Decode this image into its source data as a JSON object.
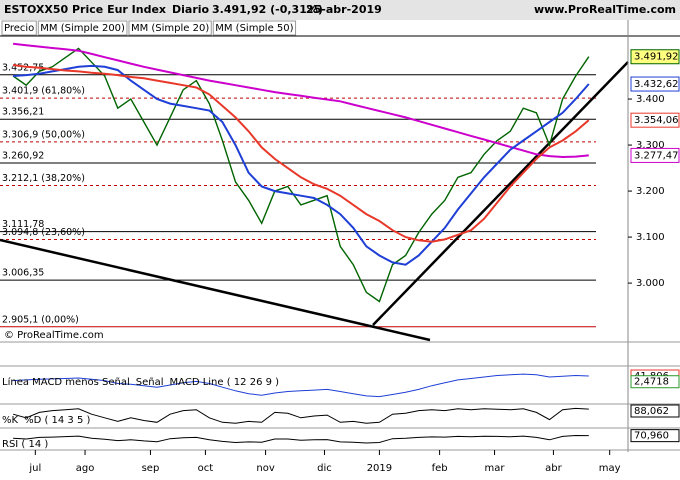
{
  "chart_data": {
    "type": "line",
    "title": "ESTOXX50 Price Eur Index",
    "period": "Diario",
    "last": "3.491,92 (-0,31%)",
    "date": "25-abr-2019",
    "source": "www.ProRealTime.com",
    "copyright": "© ProRealTime.com",
    "xlim": [
      -1,
      47
    ],
    "xticks": [
      {
        "value": 1.7,
        "label": "jul"
      },
      {
        "value": 5.5,
        "label": "ago"
      },
      {
        "value": 10.5,
        "label": "sep"
      },
      {
        "value": 14.7,
        "label": "oct"
      },
      {
        "value": 19.3,
        "label": "nov"
      },
      {
        "value": 23.8,
        "label": "dic"
      },
      {
        "value": 28,
        "label": "2019"
      },
      {
        "value": 32.6,
        "label": "feb"
      },
      {
        "value": 36.8,
        "label": "mar"
      },
      {
        "value": 41.3,
        "label": "abr"
      },
      {
        "value": 45.6,
        "label": "may"
      }
    ],
    "ylim": [
      2872,
      3537
    ],
    "yticks": [
      {
        "value": 3000,
        "label": "3.000"
      },
      {
        "value": 3100,
        "label": "3.100"
      },
      {
        "value": 3200,
        "label": "3.200"
      },
      {
        "value": 3300,
        "label": "3.300"
      },
      {
        "value": 3400,
        "label": "3.400"
      }
    ],
    "series": [
      {
        "name": "Precio",
        "color": "#006400",
        "label_color": "#000000",
        "box_fill": "#ffff80",
        "last_label": "3.491,92",
        "values": [
          3450,
          3430,
          3460,
          3470,
          3490,
          3510,
          3480,
          3450,
          3380,
          3400,
          3350,
          3300,
          3360,
          3420,
          3440,
          3390,
          3310,
          3220,
          3180,
          3130,
          3200,
          3210,
          3170,
          3180,
          3190,
          3080,
          3040,
          2980,
          2960,
          3040,
          3060,
          3110,
          3150,
          3180,
          3230,
          3240,
          3280,
          3310,
          3330,
          3380,
          3370,
          3300,
          3400,
          3450,
          3491.92
        ]
      },
      {
        "name": "MM (Simple 200)",
        "color": "#cc00cc",
        "label_color": "#cc00cc",
        "box_fill": "#ffffff",
        "last_label": "3.277,47",
        "values": [
          3520,
          3517,
          3514,
          3511,
          3508,
          3505,
          3498,
          3491,
          3484,
          3477,
          3470,
          3464,
          3458,
          3452,
          3446,
          3440,
          3435,
          3430,
          3425,
          3420,
          3415,
          3411,
          3407,
          3403,
          3399,
          3395,
          3388,
          3381,
          3374,
          3367,
          3360,
          3352,
          3344,
          3336,
          3328,
          3320,
          3312,
          3304,
          3296,
          3288,
          3280,
          3276,
          3274,
          3275,
          3277.47
        ]
      },
      {
        "name": "MM (Simple 20)",
        "color": "#1f3fd6",
        "label_color": "#1f3fd6",
        "box_fill": "#ffffff",
        "last_label": "3.432,62",
        "values": [
          3450,
          3452,
          3455,
          3460,
          3465,
          3470,
          3472,
          3470,
          3463,
          3440,
          3420,
          3400,
          3390,
          3385,
          3380,
          3375,
          3350,
          3300,
          3240,
          3210,
          3200,
          3195,
          3190,
          3185,
          3170,
          3150,
          3120,
          3080,
          3060,
          3045,
          3040,
          3060,
          3090,
          3120,
          3160,
          3195,
          3230,
          3260,
          3290,
          3310,
          3330,
          3350,
          3370,
          3400,
          3432.62
        ]
      },
      {
        "name": "MM (Simple 50)",
        "color": "#e8382a",
        "label_color": "#e8382a",
        "box_fill": "#ffffff",
        "last_label": "3.354,06",
        "values": [
          3474,
          3470,
          3468,
          3465,
          3462,
          3460,
          3457,
          3455,
          3452,
          3448,
          3445,
          3440,
          3435,
          3430,
          3425,
          3410,
          3385,
          3360,
          3330,
          3295,
          3270,
          3250,
          3230,
          3215,
          3205,
          3190,
          3170,
          3150,
          3135,
          3115,
          3100,
          3093,
          3090,
          3095,
          3105,
          3115,
          3140,
          3175,
          3210,
          3240,
          3270,
          3295,
          3310,
          3330,
          3354.06
        ]
      }
    ],
    "levels": [
      {
        "value": 3452.75,
        "label": "3.452,75",
        "style": "solid",
        "color": "#000000"
      },
      {
        "value": 3401.9,
        "label": "3.401,9 (61,80%)",
        "style": "dashed",
        "color": "#c00000"
      },
      {
        "value": 3356.21,
        "label": "3.356,21",
        "style": "solid",
        "color": "#000000"
      },
      {
        "value": 3306.9,
        "label": "3.306,9 (50,00%)",
        "style": "dashed",
        "color": "#c00000"
      },
      {
        "value": 3260.92,
        "label": "3.260,92",
        "style": "solid",
        "color": "#000000"
      },
      {
        "value": 3212.1,
        "label": "3.212,1 (38,20%)",
        "style": "dashed",
        "color": "#c00000"
      },
      {
        "value": 3111.78,
        "label": "3.111,78",
        "style": "solid",
        "color": "#000000"
      },
      {
        "value": 3094.8,
        "label": "3.094,8 (23,60%)",
        "style": "dashed",
        "color": "#c00000"
      },
      {
        "value": 3006.35,
        "label": "3.006,35",
        "style": "solid",
        "color": "#000000"
      },
      {
        "value": 2905.1,
        "label": "2.905,1 (0,00%)",
        "style": "solid",
        "color": "#c00000"
      }
    ],
    "indicators": [
      {
        "legend": [
          {
            "text": "Línea MACD menos Señal",
            "color": "#6fcf6f"
          },
          {
            "text": "Señal",
            "color": "#e8382a"
          },
          {
            "text": "MACD Line ( 12 26 9 )",
            "color": "#1f3fd6"
          }
        ],
        "ylim": [
          -130,
          90
        ],
        "color": "#1f3fd6",
        "values": [
          10,
          15,
          20,
          22,
          25,
          28,
          20,
          10,
          -10,
          -15,
          -25,
          -35,
          -20,
          -5,
          5,
          -10,
          -35,
          -60,
          -80,
          -90,
          -75,
          -65,
          -60,
          -55,
          -50,
          -65,
          -80,
          -95,
          -100,
          -85,
          -70,
          -50,
          -25,
          -5,
          15,
          25,
          35,
          45,
          50,
          55,
          50,
          35,
          40,
          45,
          41.806
        ],
        "last_labels": [
          {
            "value": 41.806,
            "label": "41,806",
            "color": "#e8382a"
          },
          {
            "value": 2.4718,
            "label": "2,4718",
            "color": "#2a9a2a"
          }
        ]
      },
      {
        "legend": [
          {
            "text": "%K",
            "color": "#000000"
          },
          {
            "text": "%D ( 14 3 5 )",
            "color": "#e8382a"
          }
        ],
        "ylim": [
          0,
          100
        ],
        "color": "#000000",
        "values": [
          60,
          40,
          70,
          80,
          85,
          90,
          60,
          40,
          20,
          40,
          25,
          15,
          60,
          80,
          85,
          40,
          15,
          10,
          20,
          15,
          70,
          65,
          40,
          50,
          55,
          15,
          20,
          10,
          15,
          60,
          65,
          80,
          85,
          80,
          90,
          85,
          90,
          88,
          85,
          90,
          70,
          30,
          85,
          92,
          88.062
        ],
        "last_labels": [
          {
            "value": 88.062,
            "label": "88,062",
            "color": "#000000"
          }
        ]
      },
      {
        "legend": [
          {
            "text": "RSI ( 14 )",
            "color": "#000000"
          }
        ],
        "ylim": [
          0,
          100
        ],
        "color": "#000000",
        "values": [
          55,
          50,
          60,
          62,
          65,
          68,
          55,
          48,
          40,
          45,
          38,
          33,
          52,
          58,
          60,
          45,
          35,
          28,
          32,
          30,
          50,
          50,
          42,
          45,
          46,
          32,
          30,
          25,
          28,
          52,
          55,
          60,
          63,
          62,
          66,
          64,
          67,
          66,
          64,
          68,
          60,
          45,
          66,
          72,
          70.96
        ],
        "last_labels": [
          {
            "value": 70.96,
            "label": "70,960",
            "color": "#000000"
          }
        ]
      }
    ]
  }
}
